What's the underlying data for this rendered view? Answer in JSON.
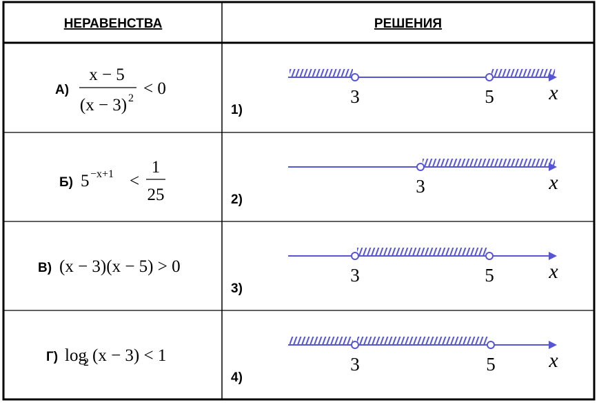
{
  "header": {
    "left": "НЕРАВЕНСТВА",
    "right": "РЕШЕНИЯ"
  },
  "inequalities": [
    {
      "label": "А)",
      "numerator": "x − 5",
      "denominator": "(x − 3)",
      "exponent": "2",
      "relation": "< 0"
    },
    {
      "label": "Б)",
      "base": "5",
      "exponent": "−x+1",
      "relation": "<",
      "numerator": "1",
      "denominator": "25"
    },
    {
      "label": "В)",
      "expression": "(x − 3)(x − 5) > 0"
    },
    {
      "label": "Г)",
      "function": "log",
      "base": "2",
      "expression": "(x − 3) < 1"
    }
  ],
  "solutions": [
    {
      "label": "1)",
      "points": [
        "3",
        "5"
      ],
      "axis": "x"
    },
    {
      "label": "2)",
      "points": [
        "3"
      ],
      "axis": "x"
    },
    {
      "label": "3)",
      "points": [
        "3",
        "5"
      ],
      "axis": "x"
    },
    {
      "label": "4)",
      "points": [
        "3",
        "5"
      ],
      "axis": "x"
    }
  ]
}
